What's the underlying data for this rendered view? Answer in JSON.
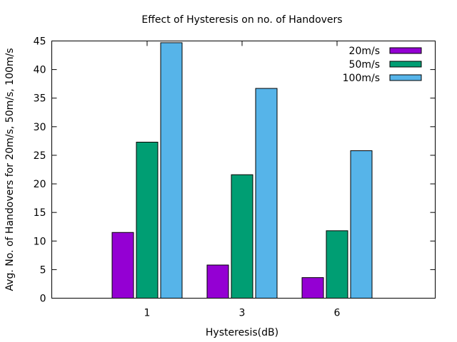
{
  "chart_data": {
    "type": "bar",
    "title": "Effect of Hysteresis on no. of Handovers",
    "xlabel": "Hysteresis(dB)",
    "ylabel": "Avg. No. of Handovers for 20m/s, 50m/s, 100m/s",
    "categories": [
      "1",
      "3",
      "6"
    ],
    "series": [
      {
        "name": "20m/s",
        "color": "#9400d3",
        "values": [
          11.5,
          5.8,
          3.6
        ]
      },
      {
        "name": "50m/s",
        "color": "#009e73",
        "values": [
          27.3,
          21.6,
          11.8
        ]
      },
      {
        "name": "100m/s",
        "color": "#56b4e9",
        "values": [
          44.7,
          36.7,
          25.8
        ]
      }
    ],
    "ylim": [
      0,
      45
    ],
    "yticks": [
      "0",
      "5",
      "10",
      "15",
      "20",
      "25",
      "30",
      "35",
      "40",
      "45"
    ],
    "grid": false,
    "legend_position": "top-right"
  }
}
